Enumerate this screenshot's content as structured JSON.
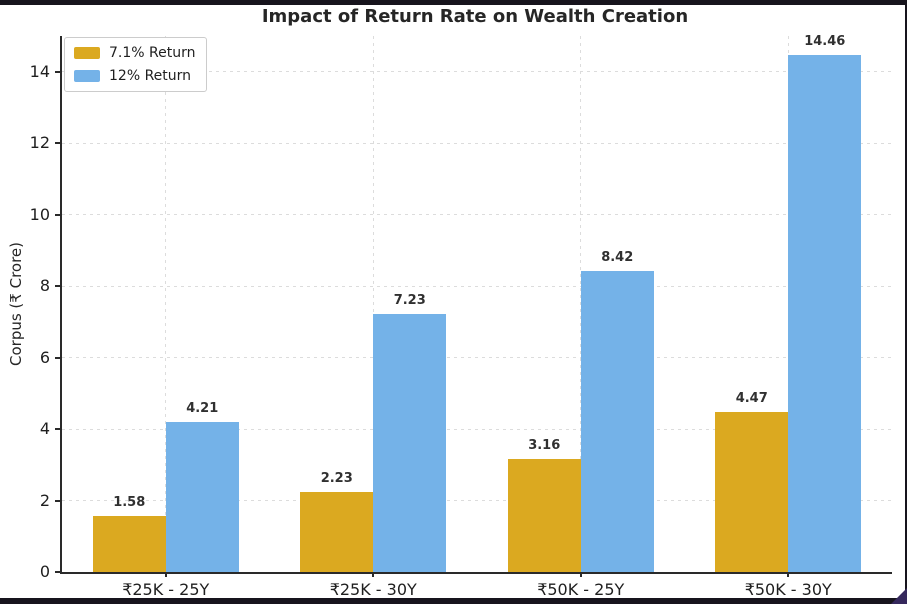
{
  "chart_data": {
    "type": "bar",
    "title": "Impact of Return Rate on Wealth Creation",
    "categories": [
      "₹25K - 25Y",
      "₹25K - 30Y",
      "₹50K - 25Y",
      "₹50K - 30Y"
    ],
    "series": [
      {
        "name": "7.1% Return",
        "color": "#DBA920",
        "values": [
          1.58,
          2.23,
          3.16,
          4.47
        ]
      },
      {
        "name": "12% Return",
        "color": "#74B2E8",
        "values": [
          4.21,
          7.23,
          8.42,
          14.46
        ]
      }
    ],
    "xlabel": "",
    "ylabel": "Corpus (₹ Crore)",
    "ylim": [
      0,
      15
    ],
    "yticks": [
      0,
      2,
      4,
      6,
      8,
      10,
      12,
      14
    ],
    "grid": "dashed horizontal and vertical",
    "legend_position": "upper left",
    "bar_value_labels": [
      "1.58",
      "4.21",
      "2.23",
      "7.23",
      "3.16",
      "8.42",
      "4.47",
      "14.46"
    ]
  },
  "decor": {
    "edge_color": "#17141d",
    "cursor_color": "#35285c"
  }
}
